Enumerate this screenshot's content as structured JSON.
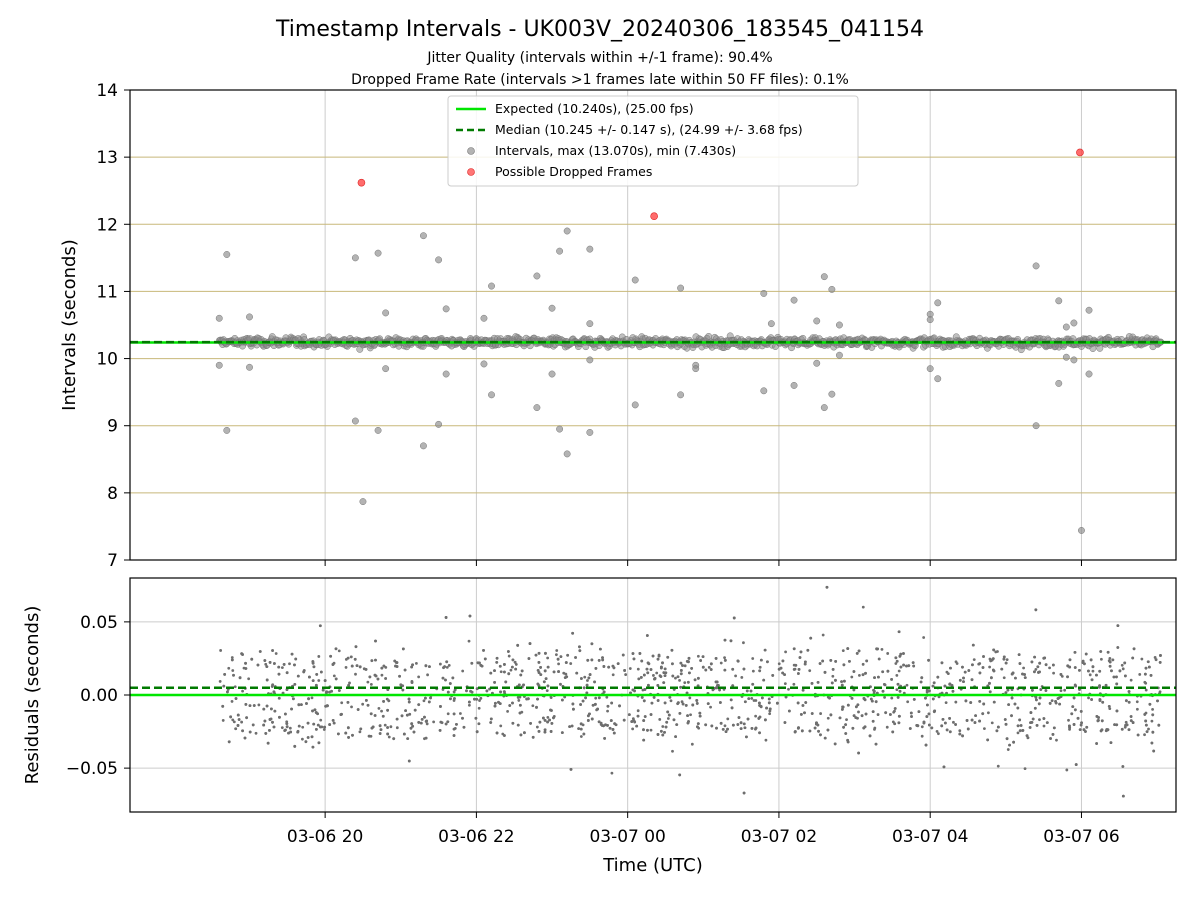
{
  "chart_data": {
    "type": "scatter",
    "title": "Timestamp Intervals - UK003V_20240306_183545_041154",
    "subtitle_lines": [
      "Jitter Quality (intervals within +/-1 frame): 90.4%",
      "Dropped Frame Rate (intervals >1 frames late within 50 FF files): 0.1%"
    ],
    "xlabel": "Time (UTC)",
    "x_ticks": [
      "03-06 20",
      "03-06 22",
      "03-07 00",
      "03-07 02",
      "03-07 04",
      "03-07 06"
    ],
    "x_tick_hours": [
      20,
      22,
      24,
      26,
      28,
      30
    ],
    "x_range_hours": [
      17.42,
      31.25
    ],
    "data_range_hours": [
      18.6,
      31.05
    ],
    "top_panel": {
      "ylabel": "Intervals (seconds)",
      "ylim": [
        7,
        14
      ],
      "y_ticks": [
        7,
        8,
        9,
        10,
        11,
        12,
        13,
        14
      ],
      "expected": 10.24,
      "median": 10.245,
      "legend": {
        "placement": "upper-center",
        "entries": [
          "Expected (10.240s), (25.00 fps)",
          "Median (10.245 +/- 0.147 s), (24.99 +/- 3.68 fps)",
          "Intervals, max (13.070s), min (7.430s)",
          "Possible Dropped Frames"
        ]
      },
      "outliers": [
        [
          18.7,
          11.55
        ],
        [
          18.7,
          8.93
        ],
        [
          18.6,
          10.6
        ],
        [
          18.6,
          9.9
        ],
        [
          19.0,
          10.62
        ],
        [
          19.0,
          9.87
        ],
        [
          20.4,
          11.5
        ],
        [
          20.4,
          9.07
        ],
        [
          20.5,
          7.87
        ],
        [
          20.7,
          11.57
        ],
        [
          20.7,
          8.93
        ],
        [
          20.8,
          10.68
        ],
        [
          20.8,
          9.85
        ],
        [
          21.3,
          11.83
        ],
        [
          21.3,
          8.7
        ],
        [
          21.5,
          11.47
        ],
        [
          21.5,
          9.02
        ],
        [
          21.6,
          10.74
        ],
        [
          21.6,
          9.77
        ],
        [
          22.1,
          10.6
        ],
        [
          22.1,
          9.92
        ],
        [
          22.2,
          11.08
        ],
        [
          22.2,
          9.46
        ],
        [
          22.8,
          11.23
        ],
        [
          22.8,
          9.27
        ],
        [
          23.1,
          11.6
        ],
        [
          23.1,
          8.95
        ],
        [
          23.0,
          10.75
        ],
        [
          23.0,
          9.77
        ],
        [
          23.2,
          11.9
        ],
        [
          23.2,
          8.58
        ],
        [
          23.5,
          11.63
        ],
        [
          23.5,
          8.9
        ],
        [
          23.5,
          10.52
        ],
        [
          23.5,
          9.98
        ],
        [
          24.1,
          11.17
        ],
        [
          24.1,
          9.31
        ],
        [
          24.7,
          11.05
        ],
        [
          24.7,
          9.46
        ],
        [
          24.9,
          9.9
        ],
        [
          24.9,
          9.85
        ],
        [
          25.8,
          10.97
        ],
        [
          25.8,
          9.52
        ],
        [
          25.9,
          10.52
        ],
        [
          26.2,
          10.87
        ],
        [
          26.2,
          9.6
        ],
        [
          26.5,
          10.56
        ],
        [
          26.5,
          9.93
        ],
        [
          26.6,
          11.22
        ],
        [
          26.6,
          9.27
        ],
        [
          26.7,
          11.03
        ],
        [
          26.7,
          9.47
        ],
        [
          26.8,
          10.5
        ],
        [
          26.8,
          10.05
        ],
        [
          28.0,
          10.66
        ],
        [
          28.0,
          9.85
        ],
        [
          28.1,
          10.83
        ],
        [
          28.1,
          9.7
        ],
        [
          28.0,
          10.58
        ],
        [
          29.4,
          11.38
        ],
        [
          29.4,
          9.0
        ],
        [
          29.7,
          10.86
        ],
        [
          29.7,
          9.63
        ],
        [
          29.9,
          10.53
        ],
        [
          29.9,
          9.98
        ],
        [
          30.1,
          10.72
        ],
        [
          30.1,
          9.77
        ],
        [
          30.0,
          7.44
        ],
        [
          29.8,
          10.47
        ],
        [
          29.8,
          10.02
        ]
      ],
      "dropped_frames": [
        [
          20.48,
          12.62
        ],
        [
          24.35,
          12.12
        ],
        [
          29.98,
          13.07
        ]
      ]
    },
    "bottom_panel": {
      "ylabel": "Residuals (seconds)",
      "ylim": [
        -0.08,
        0.08
      ],
      "y_ticks": [
        "0.05",
        "0.00",
        "−0.05"
      ],
      "y_tick_values": [
        0.05,
        0.0,
        -0.05
      ],
      "zero_line": 0.0,
      "median_offset": 0.005
    },
    "colors": {
      "expected": "#00e600",
      "median": "#007a00",
      "intervals": "#8a8a8a",
      "dropped": "#ff3b3b",
      "grid_top": "#c8b87a",
      "grid": "#cccccc",
      "residuals": "#6e6e6e"
    },
    "grid": true
  }
}
